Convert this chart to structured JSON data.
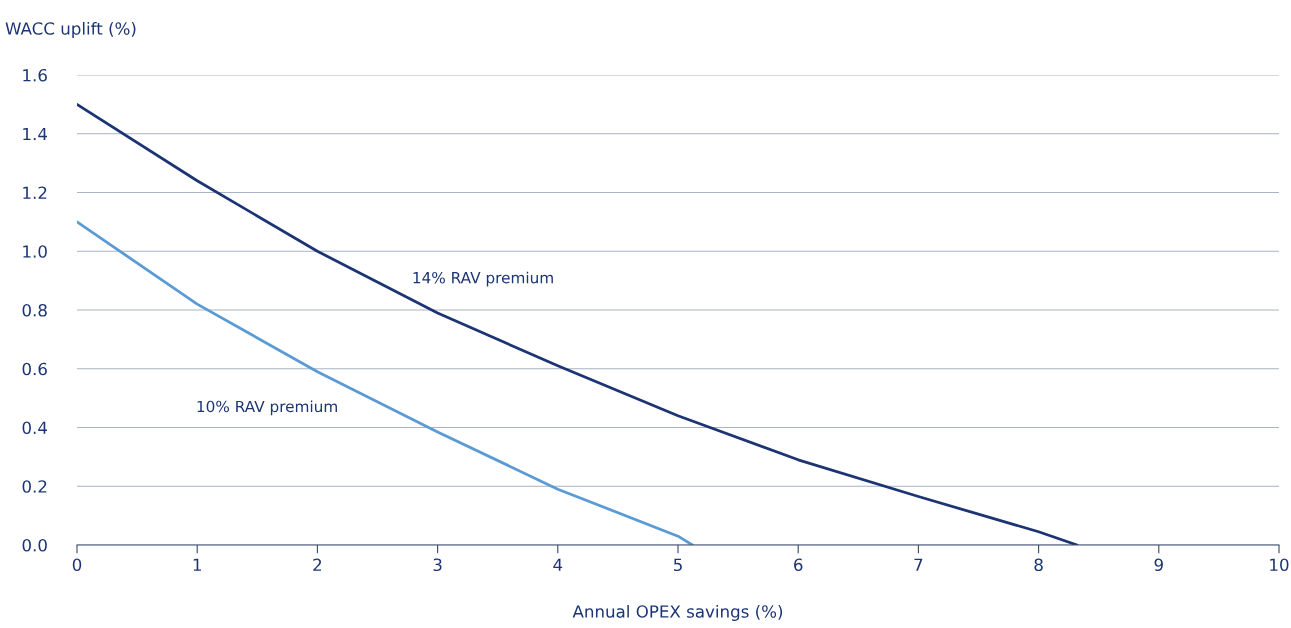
{
  "chart_data": {
    "type": "line",
    "xlabel": "Annual OPEX savings (%)",
    "ylabel": "WACC uplift (%)",
    "xlim": [
      0,
      10
    ],
    "xticks": [
      0,
      1,
      2,
      3,
      4,
      5,
      6,
      7,
      8,
      9,
      10
    ],
    "ylim": [
      0,
      1.6
    ],
    "yticks": [
      {
        "value": 0,
        "label": "0.0"
      },
      {
        "value": 0.2,
        "label": "0.2"
      },
      {
        "value": 0.4,
        "label": "0.4"
      },
      {
        "value": 0.6,
        "label": "0.6"
      },
      {
        "value": 0.8,
        "label": "0.8"
      },
      {
        "value": 1.0,
        "label": "1.0"
      },
      {
        "value": 1.2,
        "label": "1.2"
      },
      {
        "value": 1.4,
        "label": "1.4"
      },
      {
        "value": 1.6,
        "label": "1.6"
      }
    ],
    "grid": "y",
    "legend": false,
    "marker": "none",
    "line_style": "solid",
    "series": [
      {
        "name": "14% RAV premium",
        "color": "#1c3473",
        "x": [
          0,
          1,
          2,
          3,
          4,
          5,
          6,
          7,
          8,
          8.32
        ],
        "values": [
          1.5,
          1.24,
          1.0,
          0.79,
          0.61,
          0.44,
          0.29,
          0.165,
          0.045,
          0
        ]
      },
      {
        "name": "10% RAV premium",
        "color": "#5b9bd5",
        "x": [
          0,
          1,
          2,
          3,
          4,
          5,
          5.12
        ],
        "values": [
          1.1,
          0.82,
          0.59,
          0.385,
          0.19,
          0.03,
          0
        ]
      }
    ]
  }
}
